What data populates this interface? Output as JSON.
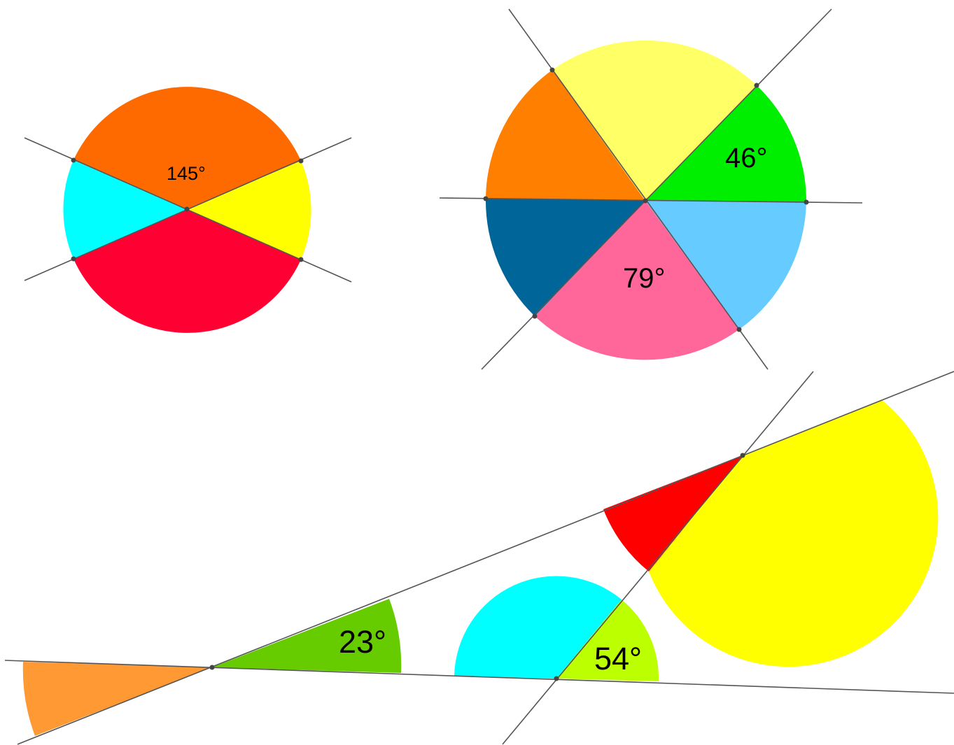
{
  "figures": [
    {
      "label": "145°",
      "sector_colors": {
        "top": "#ff6a00",
        "right": "#ffff00",
        "bottom": "#ff0033",
        "left": "#00ffff"
      }
    },
    {
      "labels": [
        "46°",
        "79°"
      ],
      "sector_colors": {
        "upper_left": "#ff8000",
        "top": "#ffff66",
        "upper_right": "#00ee00",
        "lower_right": "#66ccff",
        "bottom": "#ff6699",
        "lower_left": "#006699"
      }
    },
    {
      "labels": [
        "23°",
        "54°"
      ],
      "sector_colors": {
        "left_arc": "#ff9933",
        "right_of_first_vertex": "#66cc00",
        "upper_red": "#ff0000",
        "upper_yellow": "#ffff00",
        "lower_cyan": "#00ffff",
        "lower_lime": "#bbff00"
      }
    }
  ]
}
